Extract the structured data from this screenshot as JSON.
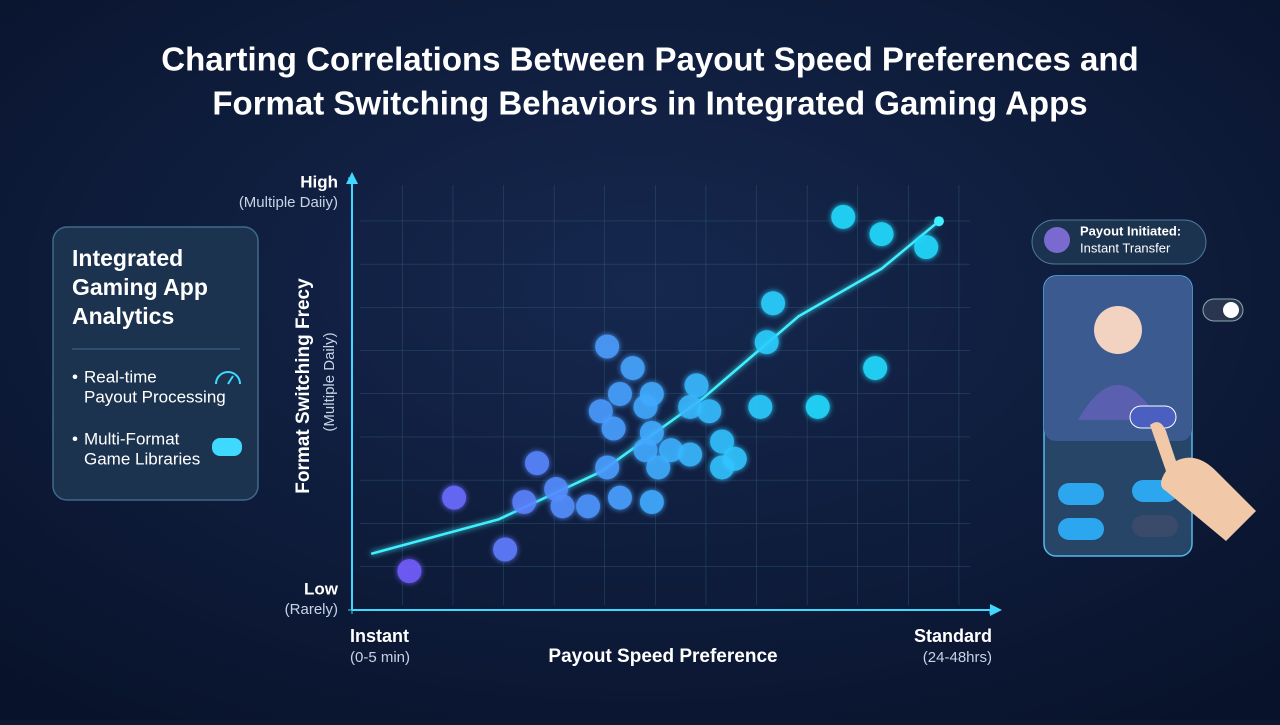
{
  "chart_data": {
    "type": "scatter",
    "title": [
      "Charting Correlations Between Payout Speed Preferences and",
      "Format Switching Behaviors in Integrated Gaming Apps"
    ],
    "x_label": "Payout Speed Preference",
    "y_label": "Format Switching Frecy",
    "y_label_sub": "(Multiple Daily)",
    "xlim": [
      0,
      10
    ],
    "ylim": [
      0,
      10
    ],
    "xticks": [
      {
        "value": 0,
        "label": "Instant"
      },
      {
        "value": 10,
        "label": "Standard"
      }
    ],
    "xtick_subs": [
      "(0-5 min)",
      "(24-48hrs)"
    ],
    "yticks": [
      {
        "value": 0,
        "label": "Low"
      },
      {
        "value": 10,
        "label": "High"
      }
    ],
    "ytick_subs": [
      "(Rarely)",
      "(Multiple Daiiy)"
    ],
    "color_scale": [
      "#7f4dff",
      "#22dcff"
    ],
    "x": [
      0.9,
      1.6,
      2.4,
      2.7,
      2.9,
      3.2,
      3.3,
      3.7,
      4.0,
      4.2,
      4.7,
      4.0,
      4.4,
      4.2,
      3.9,
      4.1,
      4.6,
      4.7,
      4.7,
      4.6,
      4.8,
      5.0,
      5.3,
      5.4,
      5.3,
      5.6,
      5.8,
      5.8,
      6.0,
      6.4,
      6.5,
      6.6,
      7.3,
      8.2,
      7.7,
      8.3,
      9.0
    ],
    "y": [
      0.9,
      2.6,
      1.4,
      2.5,
      3.4,
      2.8,
      2.4,
      2.4,
      3.3,
      2.6,
      2.5,
      6.1,
      5.6,
      5.0,
      4.6,
      4.2,
      4.7,
      5.0,
      4.1,
      3.7,
      3.3,
      3.7,
      3.6,
      5.2,
      4.7,
      4.6,
      3.9,
      3.3,
      3.5,
      4.7,
      6.2,
      7.1,
      4.7,
      5.6,
      9.1,
      8.7,
      8.4
    ],
    "trend": {
      "x": [
        0.3,
        2.3,
        3.9,
        5.5,
        7.0,
        8.3,
        9.2
      ],
      "y": [
        1.3,
        2.1,
        3.2,
        4.9,
        6.8,
        7.9,
        9.0
      ],
      "color": "#3ff0ff"
    }
  },
  "side_panel": {
    "title": [
      "Integrated",
      "Gaming App",
      "Analytics"
    ],
    "items": [
      [
        "Real-time",
        "Payout Processing"
      ],
      [
        "Multi-Format",
        "Game Libraries"
      ]
    ]
  },
  "notification": {
    "title": "Payout Initiated:",
    "text": "Instant Transfer"
  }
}
